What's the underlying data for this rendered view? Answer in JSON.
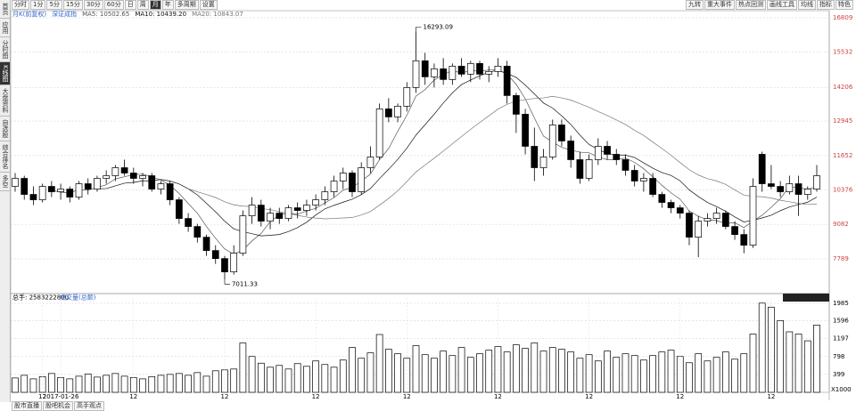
{
  "toolbar": {
    "left": [
      "分时",
      "1分",
      "5分",
      "15分",
      "30分",
      "60分",
      "日",
      "周",
      "月",
      "年",
      "多周期",
      "设置"
    ],
    "active": 8,
    "right": [
      "九转",
      "重大事件",
      "热点回测",
      "画线工具",
      "均线",
      "指标",
      "特色"
    ]
  },
  "sidebar": [
    "首页",
    "应用",
    "分时图",
    "K线图",
    "大盘资料",
    "自选股",
    "综合排名",
    "多空"
  ],
  "sidebar_active": 3,
  "bottom_tabs": [
    "股市直播",
    "股吧机会",
    "高手观点"
  ],
  "chart_data": {
    "type": "candlestick",
    "period_label": "月K(前复权)",
    "index_name": "深证成指",
    "ma_labels": [
      "MA5: 10502.65",
      "MA10: 10439.20",
      "MA20: 10843.07"
    ],
    "ma_colors": [
      "#555555",
      "#111111",
      "#777777"
    ],
    "categories": [
      null,
      null,
      null,
      "12",
      null,
      "2017-01-26",
      null,
      null,
      null,
      null,
      null,
      null,
      null,
      "12",
      null,
      null,
      null,
      null,
      null,
      null,
      null,
      null,
      null,
      "12",
      null,
      null,
      null,
      null,
      null,
      null,
      null,
      null,
      null,
      "12",
      null,
      null,
      null,
      null,
      null,
      null,
      null,
      null,
      null,
      "12",
      null,
      null,
      null,
      null,
      null,
      null,
      null,
      null,
      null,
      "12",
      null,
      null,
      null,
      null,
      null,
      null,
      null,
      null,
      null,
      "12",
      null,
      null,
      null,
      null,
      null,
      null,
      null,
      null,
      null,
      "12",
      null,
      null,
      null,
      null,
      null,
      null,
      null,
      null,
      null,
      "12",
      null,
      null,
      null,
      null,
      null
    ],
    "ohlc": [
      [
        10500,
        11000,
        10300,
        10800
      ],
      [
        10800,
        10900,
        10000,
        10200
      ],
      [
        10200,
        10500,
        9800,
        10000
      ],
      [
        10000,
        10600,
        9900,
        10500
      ],
      [
        10500,
        10700,
        10100,
        10300
      ],
      [
        10300,
        10600,
        10000,
        10400
      ],
      [
        10400,
        10500,
        9900,
        10100
      ],
      [
        10100,
        10700,
        10000,
        10600
      ],
      [
        10600,
        10800,
        10200,
        10400
      ],
      [
        10400,
        10900,
        10300,
        10800
      ],
      [
        10800,
        11100,
        10600,
        10900
      ],
      [
        10900,
        11300,
        10700,
        11200
      ],
      [
        11200,
        11500,
        10900,
        11000
      ],
      [
        11000,
        11200,
        10600,
        10800
      ],
      [
        10800,
        11000,
        10500,
        10900
      ],
      [
        10900,
        11000,
        10300,
        10400
      ],
      [
        10400,
        10700,
        10200,
        10600
      ],
      [
        10600,
        10700,
        9800,
        10000
      ],
      [
        10000,
        10100,
        9100,
        9300
      ],
      [
        9300,
        9500,
        8800,
        9000
      ],
      [
        9000,
        9100,
        8400,
        8600
      ],
      [
        8600,
        8700,
        7900,
        8100
      ],
      [
        8100,
        8300,
        7600,
        7800
      ],
      [
        7800,
        7900,
        7011.33,
        7300
      ],
      [
        7300,
        8300,
        7200,
        8000
      ],
      [
        8000,
        9600,
        7900,
        9400
      ],
      [
        9400,
        10100,
        9100,
        9800
      ],
      [
        9800,
        10000,
        9000,
        9200
      ],
      [
        9200,
        9700,
        8900,
        9500
      ],
      [
        9500,
        9700,
        9100,
        9300
      ],
      [
        9300,
        9800,
        9200,
        9700
      ],
      [
        9700,
        9900,
        9300,
        9600
      ],
      [
        9600,
        10000,
        9400,
        9800
      ],
      [
        9800,
        10200,
        9600,
        10000
      ],
      [
        10000,
        10500,
        9800,
        10300
      ],
      [
        10300,
        10900,
        10100,
        10700
      ],
      [
        10700,
        11200,
        10400,
        11000
      ],
      [
        11000,
        11100,
        10100,
        10300
      ],
      [
        10300,
        11400,
        10200,
        11200
      ],
      [
        11200,
        12000,
        11000,
        11600
      ],
      [
        11600,
        13600,
        11500,
        13400
      ],
      [
        13400,
        13800,
        12900,
        13100
      ],
      [
        13100,
        13600,
        12900,
        13500
      ],
      [
        13500,
        14400,
        13300,
        14200
      ],
      [
        14200,
        16293.09,
        14000,
        15200
      ],
      [
        15200,
        15500,
        14300,
        14600
      ],
      [
        14600,
        15100,
        14200,
        14900
      ],
      [
        14900,
        15300,
        14300,
        14500
      ],
      [
        14500,
        15100,
        14300,
        15000
      ],
      [
        15000,
        15300,
        14600,
        14700
      ],
      [
        14700,
        15200,
        14400,
        15100
      ],
      [
        15100,
        15200,
        14500,
        14700
      ],
      [
        14700,
        15000,
        14400,
        14800
      ],
      [
        14800,
        15300,
        14600,
        15000
      ],
      [
        15000,
        15200,
        13600,
        13900
      ],
      [
        13900,
        14000,
        12500,
        13200
      ],
      [
        13200,
        13400,
        11700,
        12000
      ],
      [
        12000,
        12700,
        10700,
        11200
      ],
      [
        11200,
        11900,
        10900,
        11600
      ],
      [
        11600,
        13000,
        11500,
        12800
      ],
      [
        12800,
        13000,
        12000,
        12200
      ],
      [
        12200,
        12400,
        11200,
        11500
      ],
      [
        11500,
        11800,
        10600,
        10800
      ],
      [
        10800,
        11700,
        10700,
        11500
      ],
      [
        11500,
        12300,
        11300,
        12000
      ],
      [
        12000,
        12200,
        11500,
        11700
      ],
      [
        11700,
        11900,
        11300,
        11500
      ],
      [
        11500,
        11700,
        10900,
        11100
      ],
      [
        11100,
        11300,
        10500,
        10700
      ],
      [
        10700,
        11000,
        10300,
        10800
      ],
      [
        10800,
        11000,
        10100,
        10200
      ],
      [
        10200,
        10300,
        9700,
        9900
      ],
      [
        9900,
        10000,
        9500,
        9700
      ],
      [
        9700,
        9800,
        9300,
        9500
      ],
      [
        9500,
        9600,
        8300,
        8600
      ],
      [
        8600,
        9400,
        7850,
        9200
      ],
      [
        9200,
        9500,
        9000,
        9300
      ],
      [
        9300,
        9700,
        9100,
        9500
      ],
      [
        9500,
        9600,
        8900,
        9000
      ],
      [
        9000,
        9200,
        8500,
        8700
      ],
      [
        8700,
        8900,
        8000,
        8300
      ],
      [
        8300,
        10800,
        8200,
        10500
      ],
      [
        11700,
        11800,
        10300,
        10600
      ],
      [
        10600,
        11300,
        10400,
        10500
      ],
      [
        10500,
        10700,
        10100,
        10300
      ],
      [
        10300,
        10900,
        10200,
        10600
      ],
      [
        10600,
        10900,
        9400,
        10200
      ],
      [
        10200,
        10500,
        10000,
        10400
      ],
      [
        10400,
        11300,
        10300,
        10900
      ]
    ],
    "ylim": [
      6490,
      17075
    ],
    "yticks": [
      7789,
      9082,
      10376,
      11652,
      12945,
      14206,
      15532,
      16809
    ],
    "grid": true,
    "volume": {
      "total_label": "总手: 2583222800",
      "name": "成交量(总额)",
      "unit": "X1000",
      "values": [
        320,
        380,
        300,
        350,
        420,
        330,
        300,
        360,
        410,
        340,
        380,
        420,
        360,
        330,
        300,
        350,
        380,
        400,
        420,
        380,
        440,
        360,
        480,
        500,
        520,
        1100,
        800,
        650,
        560,
        600,
        520,
        640,
        580,
        700,
        620,
        560,
        720,
        1000,
        760,
        880,
        1290,
        960,
        860,
        760,
        1040,
        840,
        760,
        920,
        820,
        1000,
        780,
        860,
        940,
        1020,
        900,
        1060,
        980,
        1100,
        920,
        1000,
        960,
        900,
        760,
        840,
        700,
        920,
        780,
        860,
        820,
        720,
        820,
        900,
        940,
        800,
        660,
        860,
        700,
        780,
        900,
        740,
        860,
        1300,
        1990,
        1900,
        1600,
        1350,
        1300,
        1150,
        1500
      ],
      "ylim": [
        0,
        2104
      ],
      "yticks": [
        399,
        798,
        1197,
        1596,
        1985
      ]
    }
  }
}
